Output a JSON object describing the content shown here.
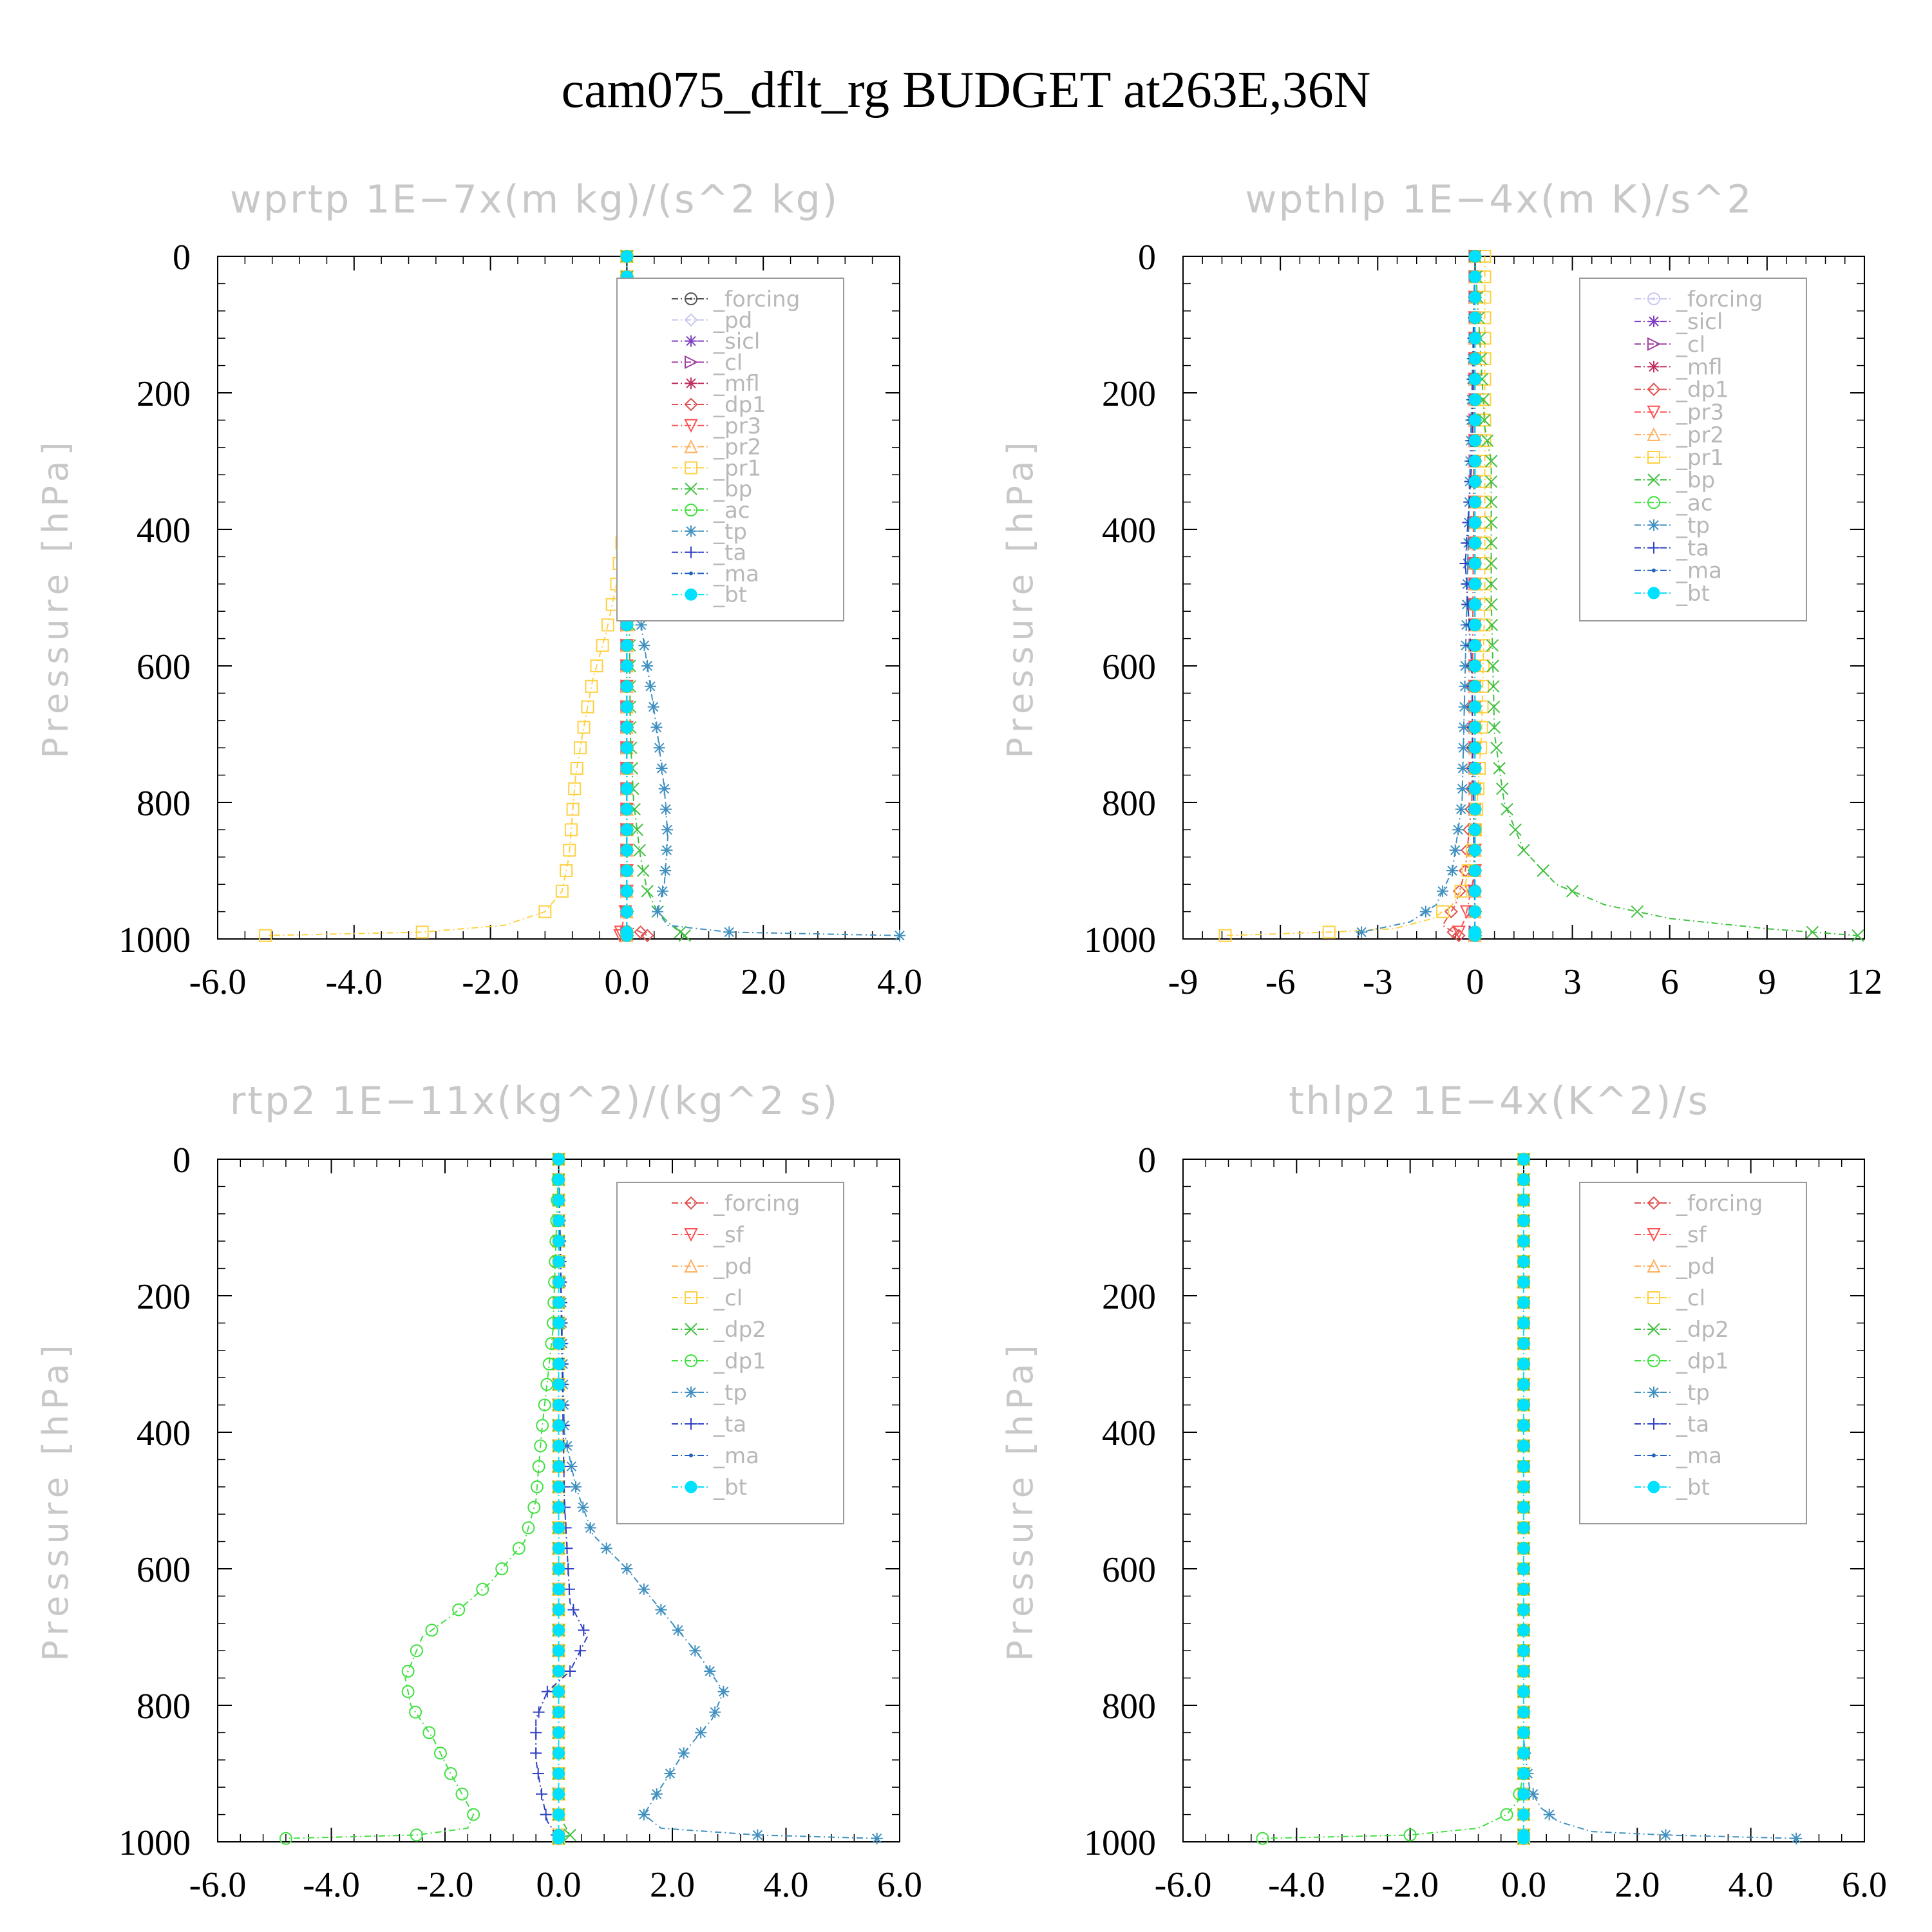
{
  "title": "cam075_dflt_rg  BUDGET at263E,36N",
  "chart_data": [
    {
      "type": "line",
      "title": "wprtp   1E−7x(m kg)/(s^2 kg)",
      "ylabel": "Pressure [hPa]",
      "xlim": [
        -6.0,
        4.0
      ],
      "ylim": [
        1000,
        0
      ],
      "xticks": [
        "-6.0",
        "-4.0",
        "-2.0",
        "0.0",
        "2.0",
        "4.0"
      ],
      "yticks": [
        "0",
        "200",
        "400",
        "600",
        "800",
        "1000"
      ],
      "legend": "top-right",
      "grid": false,
      "series": [
        {
          "name": "_forcing",
          "color": "#555555",
          "marker": "circle-dot",
          "x": [
            0.0,
            0.0
          ],
          "y": [
            0,
            1000
          ]
        },
        {
          "name": "_pd",
          "color": "#c8c8f0",
          "marker": "diamond",
          "x": [
            0.0,
            0.0
          ],
          "y": [
            0,
            1000
          ]
        },
        {
          "name": "_sicl",
          "color": "#8040c0",
          "marker": "star",
          "x": [
            0.0,
            0.0
          ],
          "y": [
            0,
            1000
          ]
        },
        {
          "name": "_cl",
          "color": "#a040a0",
          "marker": "triangle-right",
          "x": [
            0.0,
            0.0
          ],
          "y": [
            0,
            1000
          ]
        },
        {
          "name": "_mfl",
          "color": "#c03060",
          "marker": "asterisk",
          "x": [
            0.0,
            0.0
          ],
          "y": [
            0,
            1000
          ]
        },
        {
          "name": "_dp1",
          "color": "#e05050",
          "marker": "diamond",
          "x": [
            0.0,
            0.0,
            0.0,
            0.3
          ],
          "y": [
            0,
            900,
            980,
            995
          ]
        },
        {
          "name": "_pr3",
          "color": "#ff5050",
          "marker": "triangle-down",
          "x": [
            0.0,
            0.0,
            -0.1
          ],
          "y": [
            0,
            950,
            995
          ]
        },
        {
          "name": "_pr2",
          "color": "#ffb060",
          "marker": "triangle-up",
          "x": [
            0.0,
            0.0
          ],
          "y": [
            0,
            1000
          ]
        },
        {
          "name": "_pr1",
          "color": "#ffd040",
          "marker": "square",
          "x": [
            0.0,
            -0.05,
            -0.15,
            -0.3,
            -0.5,
            -0.65,
            -0.75,
            -0.8,
            -0.85,
            -0.95,
            -1.2,
            -1.8,
            -3.0,
            -5.3
          ],
          "y": [
            0,
            400,
            480,
            550,
            620,
            700,
            760,
            820,
            880,
            930,
            960,
            980,
            990,
            995
          ]
        },
        {
          "name": "_bp",
          "color": "#40c040",
          "marker": "x",
          "x": [
            0.0,
            0.05,
            0.1,
            0.2,
            0.3,
            0.45,
            0.65,
            0.85
          ],
          "y": [
            0,
            700,
            800,
            880,
            930,
            960,
            980,
            995
          ]
        },
        {
          "name": "_ac",
          "color": "#40e040",
          "marker": "circle",
          "x": [
            0.0,
            0.0
          ],
          "y": [
            0,
            1000
          ]
        },
        {
          "name": "_tp",
          "color": "#4090c0",
          "marker": "asterisk",
          "x": [
            0.0,
            0.05,
            0.15,
            0.3,
            0.45,
            0.55,
            0.6,
            0.55,
            0.45,
            0.6,
            1.5,
            4.0
          ],
          "y": [
            0,
            400,
            500,
            600,
            700,
            780,
            850,
            920,
            960,
            980,
            990,
            995
          ]
        },
        {
          "name": "_ta",
          "color": "#3040c0",
          "marker": "plus",
          "x": [
            0.0,
            0.0
          ],
          "y": [
            0,
            1000
          ]
        },
        {
          "name": "_ma",
          "color": "#2060c0",
          "marker": "dot",
          "x": [
            0.0,
            0.0
          ],
          "y": [
            0,
            1000
          ]
        },
        {
          "name": "_bt",
          "color": "#00e0ff",
          "marker": "filled-circle",
          "x": [
            0.0,
            0.0
          ],
          "y": [
            0,
            1000
          ]
        }
      ]
    },
    {
      "type": "line",
      "title": "wpthlp   1E−4x(m K)/s^2",
      "ylabel": "Pressure [hPa]",
      "xlim": [
        -9,
        12
      ],
      "ylim": [
        1000,
        0
      ],
      "xticks": [
        "-9",
        "-6",
        "-3",
        "0",
        "3",
        "6",
        "9",
        "12"
      ],
      "yticks": [
        "0",
        "200",
        "400",
        "600",
        "800",
        "1000"
      ],
      "legend": "top-right",
      "grid": false,
      "series": [
        {
          "name": "_forcing",
          "color": "#c8c8f0",
          "marker": "circle-dot",
          "x": [
            0.0,
            0.0
          ],
          "y": [
            0,
            1000
          ]
        },
        {
          "name": "_sicl",
          "color": "#8040c0",
          "marker": "star",
          "x": [
            0.0,
            0.0
          ],
          "y": [
            0,
            1000
          ]
        },
        {
          "name": "_cl",
          "color": "#a040a0",
          "marker": "triangle-right",
          "x": [
            0.0,
            0.0
          ],
          "y": [
            0,
            1000
          ]
        },
        {
          "name": "_mfl",
          "color": "#c03060",
          "marker": "asterisk",
          "x": [
            0.0,
            0.0
          ],
          "y": [
            0,
            1000
          ]
        },
        {
          "name": "_dp1",
          "color": "#e05050",
          "marker": "diamond",
          "x": [
            0.0,
            -0.1,
            -0.3,
            -0.6,
            -1.0,
            -0.5
          ],
          "y": [
            0,
            800,
            900,
            950,
            980,
            995
          ]
        },
        {
          "name": "_pr3",
          "color": "#ff5050",
          "marker": "triangle-down",
          "x": [
            0.0,
            0.0,
            -0.3,
            -0.5
          ],
          "y": [
            0,
            900,
            970,
            990
          ]
        },
        {
          "name": "_pr2",
          "color": "#ffb060",
          "marker": "triangle-up",
          "x": [
            0.0,
            0.0
          ],
          "y": [
            0,
            1000
          ]
        },
        {
          "name": "_pr1",
          "color": "#ffd040",
          "marker": "square",
          "x": [
            0.3,
            0.3,
            0.2,
            0.0,
            -0.3,
            -0.7,
            -1.3,
            -2.5,
            -4.5,
            -7.7
          ],
          "y": [
            0,
            500,
            700,
            850,
            920,
            950,
            970,
            985,
            990,
            995
          ]
        },
        {
          "name": "_bp",
          "color": "#40c040",
          "marker": "x",
          "x": [
            0.0,
            0.3,
            0.5,
            0.5,
            0.6,
            0.9,
            1.5,
            2.5,
            4.0,
            6.0,
            9.0,
            11.8
          ],
          "y": [
            0,
            250,
            300,
            500,
            700,
            800,
            870,
            920,
            950,
            970,
            985,
            995
          ]
        },
        {
          "name": "_ac",
          "color": "#40e040",
          "marker": "circle",
          "x": [
            0.0,
            0.0
          ],
          "y": [
            0,
            1000
          ]
        },
        {
          "name": "_tp",
          "color": "#4090c0",
          "marker": "asterisk",
          "x": [
            0.0,
            -0.2,
            -0.3,
            -0.4,
            -0.7,
            -1.2,
            -2.0,
            -3.5
          ],
          "y": [
            0,
            400,
            600,
            800,
            900,
            950,
            975,
            990
          ]
        },
        {
          "name": "_ta",
          "color": "#3040c0",
          "marker": "plus",
          "x": [
            0.0,
            -0.1,
            -0.3,
            -0.1,
            0.0
          ],
          "y": [
            0,
            300,
            450,
            600,
            1000
          ]
        },
        {
          "name": "_ma",
          "color": "#2060c0",
          "marker": "dot",
          "x": [
            0.0,
            0.0
          ],
          "y": [
            0,
            1000
          ]
        },
        {
          "name": "_bt",
          "color": "#00e0ff",
          "marker": "filled-circle",
          "x": [
            0.0,
            0.0
          ],
          "y": [
            0,
            1000
          ]
        }
      ]
    },
    {
      "type": "line",
      "title": "rtp2   1E−11x(kg^2)/(kg^2 s)",
      "ylabel": "Pressure [hPa]",
      "xlim": [
        -6.0,
        6.0
      ],
      "ylim": [
        1000,
        0
      ],
      "xticks": [
        "-6.0",
        "-4.0",
        "-2.0",
        "0.0",
        "2.0",
        "4.0",
        "6.0"
      ],
      "yticks": [
        "0",
        "200",
        "400",
        "600",
        "800",
        "1000"
      ],
      "legend": "top-right",
      "grid": false,
      "series": [
        {
          "name": "_forcing",
          "color": "#e05050",
          "marker": "diamond",
          "x": [
            0.0,
            0.0
          ],
          "y": [
            0,
            1000
          ]
        },
        {
          "name": "_sf",
          "color": "#ff5050",
          "marker": "triangle-down",
          "x": [
            0.0,
            0.0
          ],
          "y": [
            0,
            1000
          ]
        },
        {
          "name": "_pd",
          "color": "#ffb060",
          "marker": "triangle-up",
          "x": [
            0.0,
            0.0
          ],
          "y": [
            0,
            1000
          ]
        },
        {
          "name": "_cl",
          "color": "#ffd040",
          "marker": "square",
          "x": [
            0.0,
            0.0
          ],
          "y": [
            0,
            1000
          ]
        },
        {
          "name": "_dp2",
          "color": "#40c040",
          "marker": "x",
          "x": [
            0.0,
            0.0,
            0.2,
            0.0
          ],
          "y": [
            0,
            960,
            990,
            995
          ]
        },
        {
          "name": "_dp1",
          "color": "#40e040",
          "marker": "circle",
          "x": [
            0.0,
            -0.1,
            -0.3,
            -0.4,
            -0.6,
            -1.2,
            -1.9,
            -2.4,
            -2.7,
            -2.6,
            -2.2,
            -1.9,
            -1.7,
            -1.5,
            -1.6,
            -2.5,
            -4.8
          ],
          "y": [
            0,
            250,
            400,
            500,
            560,
            620,
            670,
            700,
            760,
            800,
            850,
            900,
            930,
            960,
            980,
            990,
            995
          ]
        },
        {
          "name": "_tp",
          "color": "#4090c0",
          "marker": "asterisk",
          "x": [
            0.0,
            0.1,
            0.3,
            0.6,
            1.2,
            1.9,
            2.5,
            2.9,
            2.7,
            2.2,
            1.8,
            1.5,
            1.8,
            3.5,
            5.6
          ],
          "y": [
            0,
            400,
            480,
            550,
            600,
            670,
            730,
            780,
            820,
            870,
            920,
            960,
            980,
            990,
            995
          ]
        },
        {
          "name": "_ta",
          "color": "#3040c0",
          "marker": "plus",
          "x": [
            0.0,
            0.1,
            0.2,
            0.5,
            0.2,
            -0.2,
            -0.4,
            -0.4,
            -0.3,
            -0.2,
            0.0
          ],
          "y": [
            0,
            500,
            650,
            700,
            750,
            780,
            820,
            880,
            930,
            970,
            995
          ]
        },
        {
          "name": "_ma",
          "color": "#2060c0",
          "marker": "dot",
          "x": [
            0.0,
            0.0
          ],
          "y": [
            0,
            1000
          ]
        },
        {
          "name": "_bt",
          "color": "#00e0ff",
          "marker": "filled-circle",
          "x": [
            0.0,
            0.0
          ],
          "y": [
            0,
            1000
          ]
        }
      ]
    },
    {
      "type": "line",
      "title": "thlp2   1E−4x(K^2)/s",
      "ylabel": "Pressure [hPa]",
      "xlim": [
        -6.0,
        6.0
      ],
      "ylim": [
        1000,
        0
      ],
      "xticks": [
        "-6.0",
        "-4.0",
        "-2.0",
        "0.0",
        "2.0",
        "4.0",
        "6.0"
      ],
      "yticks": [
        "0",
        "200",
        "400",
        "600",
        "800",
        "1000"
      ],
      "legend": "top-right",
      "grid": false,
      "series": [
        {
          "name": "_forcing",
          "color": "#e05050",
          "marker": "diamond",
          "x": [
            0.0,
            0.0
          ],
          "y": [
            0,
            1000
          ]
        },
        {
          "name": "_sf",
          "color": "#ff5050",
          "marker": "triangle-down",
          "x": [
            0.0,
            0.0
          ],
          "y": [
            0,
            1000
          ]
        },
        {
          "name": "_pd",
          "color": "#ffb060",
          "marker": "triangle-up",
          "x": [
            0.0,
            0.0
          ],
          "y": [
            0,
            1000
          ]
        },
        {
          "name": "_cl",
          "color": "#ffd040",
          "marker": "square",
          "x": [
            0.0,
            0.0
          ],
          "y": [
            0,
            1000
          ]
        },
        {
          "name": "_dp2",
          "color": "#40c040",
          "marker": "x",
          "x": [
            0.0,
            0.0
          ],
          "y": [
            0,
            1000
          ]
        },
        {
          "name": "_dp1",
          "color": "#40e040",
          "marker": "circle",
          "x": [
            0.0,
            0.0,
            -0.1,
            -0.3,
            -0.8,
            -2.0,
            -4.6
          ],
          "y": [
            0,
            900,
            940,
            960,
            980,
            990,
            995
          ]
        },
        {
          "name": "_tp",
          "color": "#4090c0",
          "marker": "asterisk",
          "x": [
            0.0,
            0.0,
            0.1,
            0.3,
            0.6,
            1.2,
            2.5,
            4.8
          ],
          "y": [
            0,
            850,
            920,
            950,
            970,
            985,
            990,
            995
          ]
        },
        {
          "name": "_ta",
          "color": "#3040c0",
          "marker": "plus",
          "x": [
            0.0,
            0.0
          ],
          "y": [
            0,
            1000
          ]
        },
        {
          "name": "_ma",
          "color": "#2060c0",
          "marker": "dot",
          "x": [
            0.0,
            0.0
          ],
          "y": [
            0,
            1000
          ]
        },
        {
          "name": "_bt",
          "color": "#00e0ff",
          "marker": "filled-circle",
          "x": [
            0.0,
            0.0
          ],
          "y": [
            0,
            1000
          ]
        }
      ]
    }
  ]
}
